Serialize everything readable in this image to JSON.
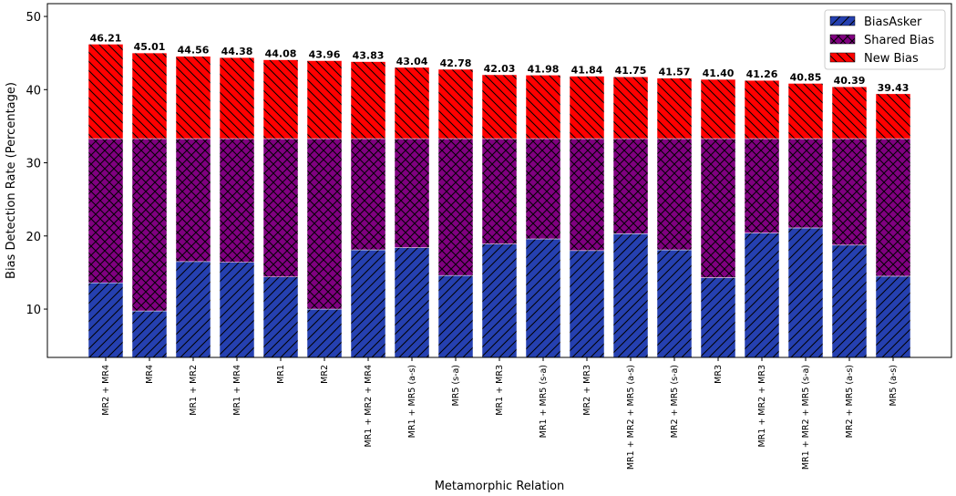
{
  "chart_data": {
    "type": "stacked-bar",
    "xlabel": "Metamorphic Relation",
    "ylabel": "Bias Detection Rate (Percentage)",
    "categories": [
      "MR2 + MR4",
      "MR4",
      "MR1 + MR2",
      "MR1 + MR4",
      "MR1",
      "MR2",
      "MR1 + MR2 + MR4",
      "MR1 + MR5 (a-s)",
      "MR5 (s-a)",
      "MR1 + MR3",
      "MR1 + MR5 (s-a)",
      "MR2 + MR3",
      "MR1 + MR2 + MR5 (a-s)",
      "MR2 + MR5 (s-a)",
      "MR3",
      "MR1 + MR2 + MR3",
      "MR1 + MR2 + MR5 (s-a)",
      "MR2 + MR5 (a-s)",
      "MR5 (a-s)"
    ],
    "series": [
      {
        "name": "BiasAsker",
        "color": "#2540b0",
        "hatch": "/",
        "values": [
          13.6,
          9.75,
          16.5,
          16.4,
          14.4,
          10.0,
          18.1,
          18.4,
          14.6,
          18.9,
          19.6,
          18.0,
          20.3,
          18.1,
          14.3,
          20.4,
          21.1,
          18.75,
          14.5
        ]
      },
      {
        "name": "Shared Bias",
        "color": "#800080",
        "hatch": "x",
        "values": [
          19.7,
          23.55,
          16.8,
          16.9,
          18.9,
          23.3,
          15.2,
          14.9,
          18.7,
          14.4,
          13.7,
          15.3,
          13.0,
          15.2,
          19.0,
          12.9,
          12.2,
          14.55,
          18.8
        ]
      },
      {
        "name": "New Bias",
        "color": "#ff0000",
        "hatch": "\\",
        "values": [
          12.91,
          11.71,
          11.26,
          11.08,
          10.78,
          10.66,
          10.53,
          9.74,
          9.48,
          8.73,
          8.68,
          8.54,
          8.45,
          8.27,
          8.1,
          7.96,
          7.55,
          7.09,
          6.13
        ]
      }
    ],
    "totals": [
      46.21,
      45.01,
      44.56,
      44.38,
      44.08,
      43.96,
      43.83,
      43.04,
      42.78,
      42.03,
      41.98,
      41.84,
      41.75,
      41.57,
      41.4,
      41.26,
      40.85,
      40.39,
      39.43
    ],
    "total_labels": [
      "46.21",
      "45.01",
      "44.56",
      "44.38",
      "44.08",
      "43.96",
      "43.83",
      "43.04",
      "42.78",
      "42.03",
      "41.98",
      "41.84",
      "41.75",
      "41.57",
      "41.40",
      "41.26",
      "40.85",
      "40.39",
      "39.43"
    ],
    "ylim": [
      3.4,
      51.75
    ],
    "yticks": [
      10,
      20,
      30,
      40,
      50
    ],
    "legend": "upper right"
  }
}
